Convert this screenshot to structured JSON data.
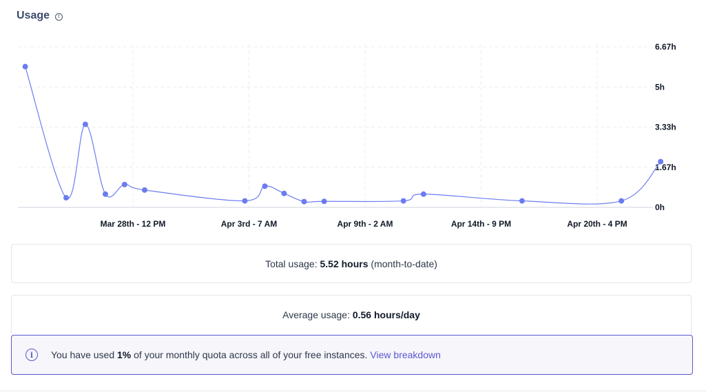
{
  "header": {
    "title": "Usage",
    "info_icon": "info-icon"
  },
  "chart_data": {
    "type": "line",
    "x_ticks": [
      "Mar 28th - 12 PM",
      "Apr 3rd - 7 AM",
      "Apr 9th - 2 AM",
      "Apr 14th - 9 PM",
      "Apr 20th - 4 PM"
    ],
    "y_ticks": [
      "6.67h",
      "5h",
      "3.33h",
      "1.67h",
      "0h"
    ],
    "ylim": [
      0,
      6.67
    ],
    "grid": true,
    "series": [
      {
        "color": "#6b7cf0",
        "points": [
          {
            "x": "Mar 23rd - 3 AM",
            "y": 5.85
          },
          {
            "x": "Mar 25th - 4 AM",
            "y": 0.4
          },
          {
            "x": "Mar 26th - 3 AM",
            "y": 3.45
          },
          {
            "x": "Mar 27th - 3 AM",
            "y": 0.55
          },
          {
            "x": "Mar 28th - 2 AM",
            "y": 0.95
          },
          {
            "x": "Mar 29th - 2 AM",
            "y": 0.72
          },
          {
            "x": "Apr 3rd - 2 AM",
            "y": 0.27
          },
          {
            "x": "Apr 4th - 2 AM",
            "y": 0.88
          },
          {
            "x": "Apr 5th - 1 AM",
            "y": 0.58
          },
          {
            "x": "Apr 6th - 1 AM",
            "y": 0.24
          },
          {
            "x": "Apr 7th - 1 AM",
            "y": 0.25
          },
          {
            "x": "Apr 11th - 12 AM",
            "y": 0.27
          },
          {
            "x": "Apr 12th - 12 AM",
            "y": 0.55
          },
          {
            "x": "Apr 16th - 10 PM",
            "y": 0.27
          },
          {
            "x": "Apr 21st - 9 PM",
            "y": 0.27
          },
          {
            "x": "Apr 23rd - 8 PM",
            "y": 1.9
          }
        ]
      }
    ]
  },
  "summary": {
    "total_label": "Total usage:",
    "total_value": "5.52 hours",
    "total_suffix": "(month-to-date)",
    "avg_label": "Average usage:",
    "avg_value": "0.56 hours/day"
  },
  "notice": {
    "prefix": "You have used",
    "percent": "1%",
    "suffix": "of your monthly quota across all of your free instances.",
    "link": "View breakdown"
  }
}
